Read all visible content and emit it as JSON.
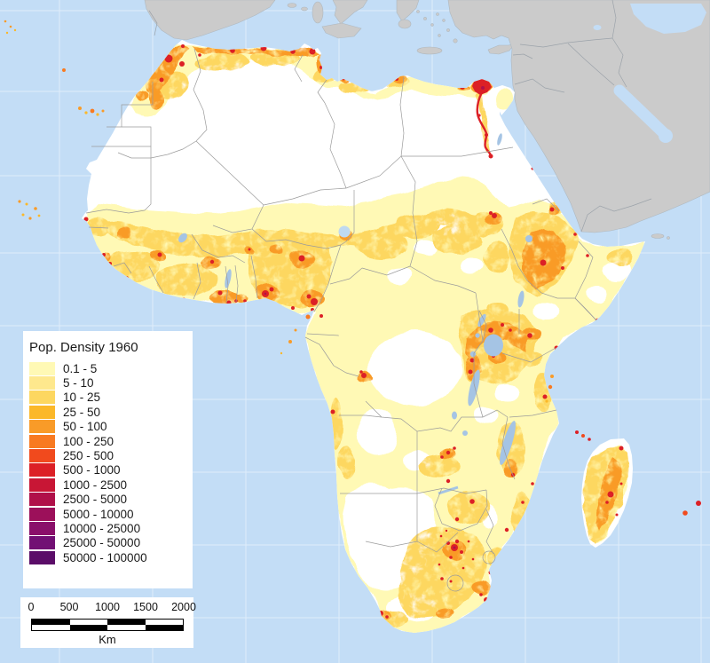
{
  "map": {
    "ocean_color": "#C3DDF6",
    "graticule_color": "#E4F0FC",
    "outside_land_color": "#CBCBCB",
    "outside_border_color": "#9CA3AA",
    "africa_nodata_color": "#FFFFFF",
    "lake_color": "#A5C4E4",
    "country_border_color": "#9B9B9B"
  },
  "legend": {
    "title": "Pop. Density 1960",
    "classes": [
      {
        "label": "0.1 - 5",
        "color": "#FFF9B5"
      },
      {
        "label": "5 - 10",
        "color": "#FEE88D"
      },
      {
        "label": "10 - 25",
        "color": "#FDD760"
      },
      {
        "label": "25 - 50",
        "color": "#FBB829"
      },
      {
        "label": "50 - 100",
        "color": "#F99B28"
      },
      {
        "label": "100 - 250",
        "color": "#F87A21"
      },
      {
        "label": "250 - 500",
        "color": "#F14A1D"
      },
      {
        "label": "500 - 1000",
        "color": "#DC2026"
      },
      {
        "label": "1000 - 2500",
        "color": "#C81635"
      },
      {
        "label": "2500 - 5000",
        "color": "#B01049"
      },
      {
        "label": "5000 - 10000",
        "color": "#9C105A"
      },
      {
        "label": "10000 - 25000",
        "color": "#8A0F6A"
      },
      {
        "label": "25000 - 50000",
        "color": "#721074"
      },
      {
        "label": "50000 - 100000",
        "color": "#5B0D68"
      }
    ]
  },
  "scale_bar": {
    "ticks": [
      "0",
      "500",
      "1000",
      "1500",
      "2000"
    ],
    "unit": "Km",
    "segment_colors": [
      "#000000",
      "#FFFFFF"
    ]
  }
}
